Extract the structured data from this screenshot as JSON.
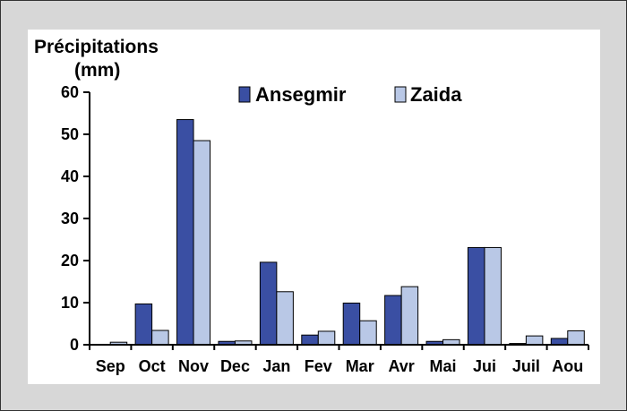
{
  "chart_data": {
    "type": "bar",
    "ylabel_line1": "Précipitations",
    "ylabel_line2": "(mm)",
    "categories": [
      "Sep",
      "Oct",
      "Nov",
      "Dec",
      "Jan",
      "Fev",
      "Mar",
      "Avr",
      "Mai",
      "Jui",
      "Juil",
      "Aou"
    ],
    "series": [
      {
        "name": "Ansegmir",
        "color": "#3a4fa3",
        "values": [
          0,
          9.7,
          53.5,
          0.8,
          19.6,
          2.3,
          9.9,
          11.7,
          0.8,
          23.1,
          0.3,
          1.5
        ]
      },
      {
        "name": "Zaida",
        "color": "#b9c8e6",
        "values": [
          0.6,
          3.4,
          48.5,
          0.9,
          12.6,
          3.2,
          5.7,
          13.8,
          1.2,
          23.1,
          2.1,
          3.3
        ]
      }
    ],
    "ylim": [
      0,
      60
    ],
    "yticks": [
      0,
      10,
      20,
      30,
      40,
      50,
      60
    ],
    "legend_position": "top",
    "grid": false
  }
}
